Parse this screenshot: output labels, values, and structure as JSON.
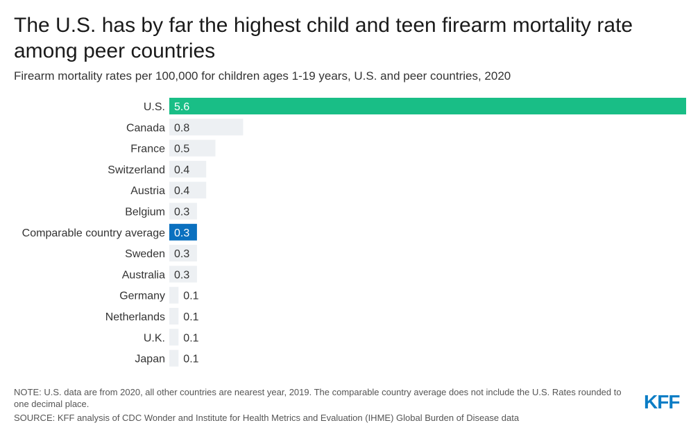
{
  "title": "The U.S. has by far the highest child and teen firearm mortality rate among peer countries",
  "subtitle": "Firearm mortality rates per 100,000 for children ages 1-19 years, U.S. and peer countries, 2020",
  "note": "NOTE: U.S. data are from 2020, all other countries are nearest year, 2019. The comparable country average does not include the U.S. Rates rounded to one decimal place.",
  "source": "SOURCE: KFF analysis of CDC Wonder and Institute for Health Metrics and Evaluation (IHME) Global Burden of Disease data",
  "logo_text": "KFF",
  "colors": {
    "us_bar": "#19be86",
    "average_bar": "#0a70bf",
    "other_bar": "#edf0f3",
    "highlight_label": "#ffffff",
    "default_label": "#333333",
    "logo": "#0b7dc5"
  },
  "chart_data": {
    "type": "bar",
    "orientation": "horizontal",
    "categories": [
      "U.S.",
      "Canada",
      "France",
      "Switzerland",
      "Austria",
      "Belgium",
      "Comparable country average",
      "Sweden",
      "Australia",
      "Germany",
      "Netherlands",
      "U.K.",
      "Japan"
    ],
    "values": [
      5.6,
      0.8,
      0.5,
      0.4,
      0.4,
      0.3,
      0.3,
      0.3,
      0.3,
      0.1,
      0.1,
      0.1,
      0.1
    ],
    "value_labels": [
      "5.6",
      "0.8",
      "0.5",
      "0.4",
      "0.4",
      "0.3",
      "0.3",
      "0.3",
      "0.3",
      "0.1",
      "0.1",
      "0.1",
      "0.1"
    ],
    "highlight": {
      "U.S.": "us",
      "Comparable country average": "average"
    },
    "xlim": [
      0,
      5.6
    ],
    "grid": false,
    "legend": "none"
  }
}
